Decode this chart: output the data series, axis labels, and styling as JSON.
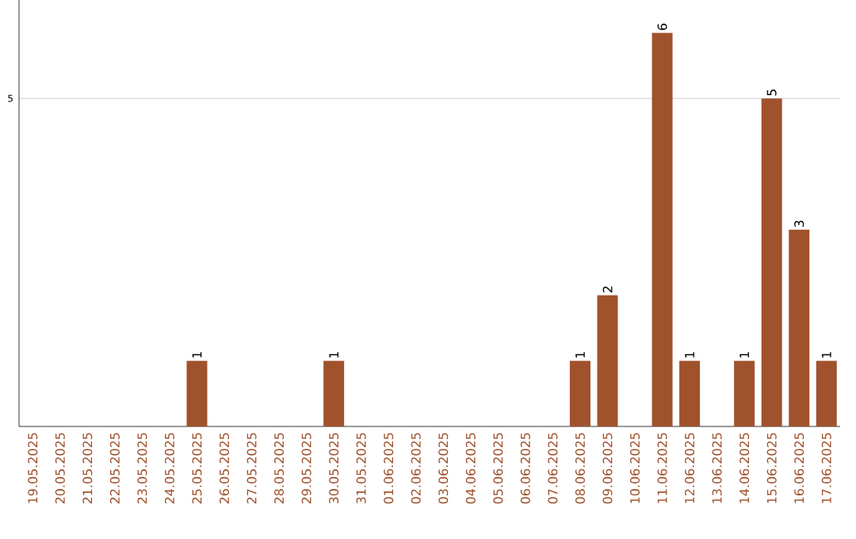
{
  "chart_data": {
    "type": "bar",
    "categories": [
      "19.05.2025",
      "20.05.2025",
      "21.05.2025",
      "22.05.2025",
      "23.05.2025",
      "24.05.2025",
      "25.05.2025",
      "26.05.2025",
      "27.05.2025",
      "28.05.2025",
      "29.05.2025",
      "30.05.2025",
      "31.05.2025",
      "01.06.2025",
      "02.06.2025",
      "03.06.2025",
      "04.06.2025",
      "05.06.2025",
      "06.06.2025",
      "07.06.2025",
      "08.06.2025",
      "09.06.2025",
      "10.06.2025",
      "11.06.2025",
      "12.06.2025",
      "13.06.2025",
      "14.06.2025",
      "15.06.2025",
      "16.06.2025",
      "17.06.2025"
    ],
    "values": [
      0,
      0,
      0,
      0,
      0,
      0,
      1,
      0,
      0,
      0,
      0,
      1,
      0,
      0,
      0,
      0,
      0,
      0,
      0,
      0,
      1,
      2,
      0,
      6,
      1,
      0,
      1,
      5,
      3,
      1
    ],
    "value_labels": [
      null,
      null,
      null,
      null,
      null,
      null,
      "1",
      null,
      null,
      null,
      null,
      "1",
      null,
      null,
      null,
      null,
      null,
      null,
      null,
      null,
      "1",
      "2",
      null,
      "6",
      "1",
      null,
      "1",
      "5",
      "3",
      "1"
    ],
    "color": "#a0522d",
    "ylim": [
      0,
      6.5
    ],
    "yticks": [
      5
    ],
    "grid": "y"
  }
}
